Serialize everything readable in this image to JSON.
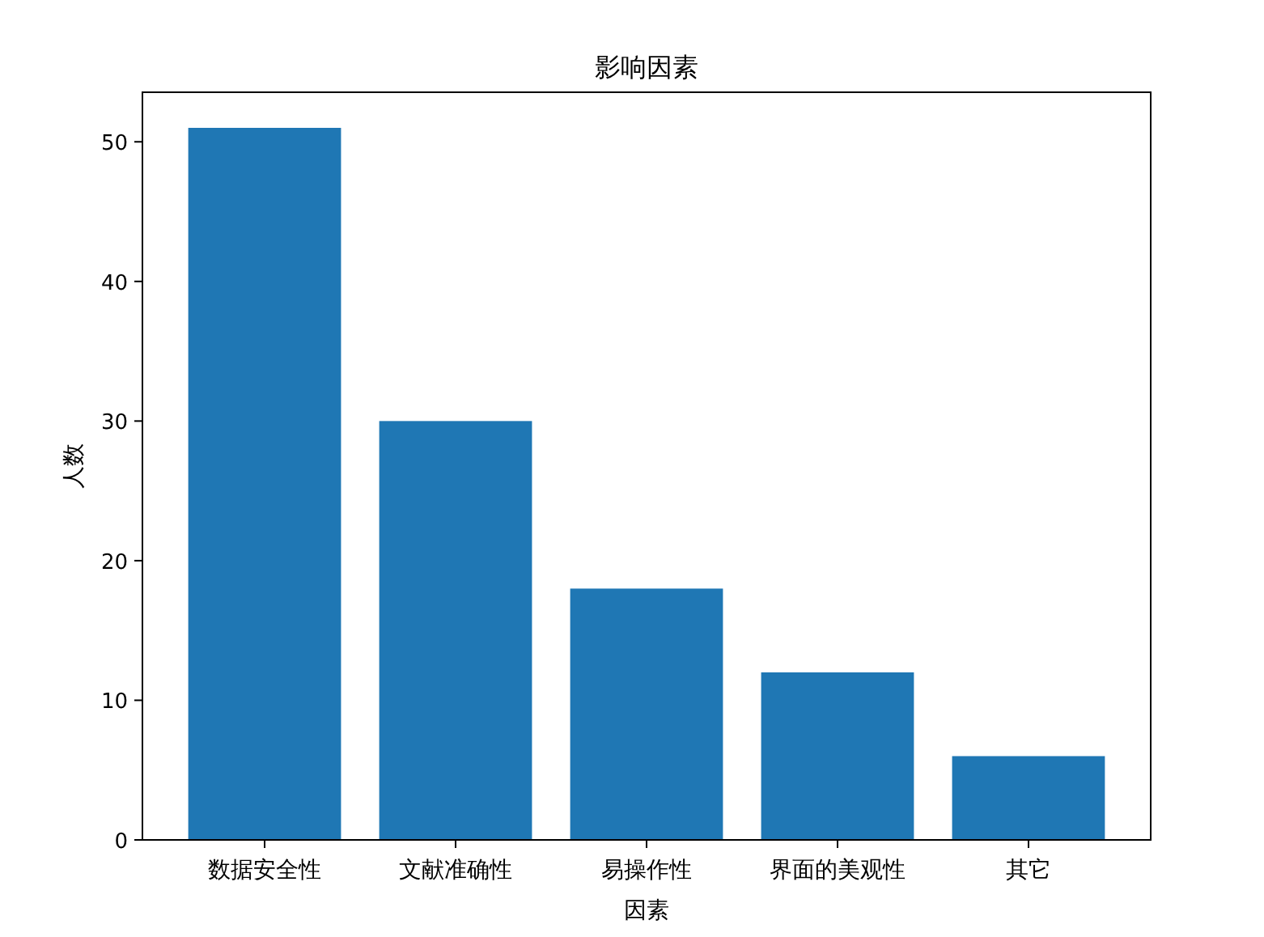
{
  "chart_data": {
    "type": "bar",
    "title": "影响因素",
    "xlabel": "因素",
    "ylabel": "人数",
    "categories": [
      "数据安全性",
      "文献准确性",
      "易操作性",
      "界面的美观性",
      "其它"
    ],
    "values": [
      51,
      30,
      18,
      12,
      6
    ],
    "color": "#1f77b4",
    "ylim": [
      0,
      53.55
    ],
    "yticks": [
      0,
      10,
      20,
      30,
      40,
      50
    ],
    "grid": false
  }
}
